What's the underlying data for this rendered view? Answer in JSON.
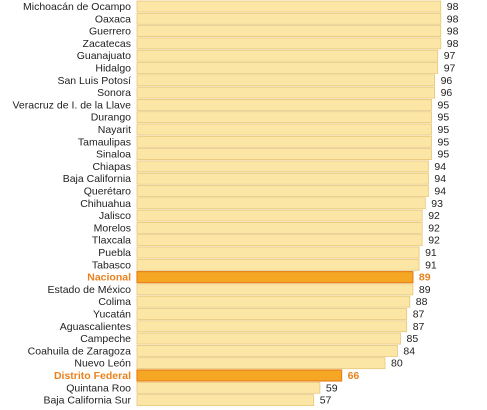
{
  "chart_data": {
    "type": "bar",
    "orientation": "horizontal",
    "categories": [
      "Michoacán de Ocampo",
      "Oaxaca",
      "Guerrero",
      "Zacatecas",
      "Guanajuato",
      "Hidalgo",
      "San Luis Potosí",
      "Sonora",
      "Veracruz de I. de la Llave",
      "Durango",
      "Nayarit",
      "Tamaulipas",
      "Sinaloa",
      "Chiapas",
      "Baja California",
      "Querétaro",
      "Chihuahua",
      "Jalisco",
      "Morelos",
      "Tlaxcala",
      "Puebla",
      "Tabasco",
      "Nacional",
      "Estado de México",
      "Colima",
      "Yucatán",
      "Aguascalientes",
      "Campeche",
      "Coahuila de Zaragoza",
      "Nuevo León",
      "Distrito Federal",
      "Quintana Roo",
      "Baja California Sur"
    ],
    "values": [
      98,
      98,
      98,
      98,
      97,
      97,
      96,
      96,
      95,
      95,
      95,
      95,
      95,
      94,
      94,
      94,
      93,
      92,
      92,
      92,
      91,
      91,
      89,
      89,
      88,
      87,
      87,
      85,
      84,
      80,
      66,
      59,
      57
    ],
    "highlighted": [
      "Nacional",
      "Distrito Federal"
    ],
    "xlim": [
      0,
      98
    ],
    "colors": {
      "bar_fill": "#fce6a6",
      "bar_stroke": "#e6c77a",
      "highlight_fill": "#f5a623",
      "highlight_stroke": "#e8821e",
      "highlight_text": "#e8821e",
      "text": "#222222"
    }
  }
}
